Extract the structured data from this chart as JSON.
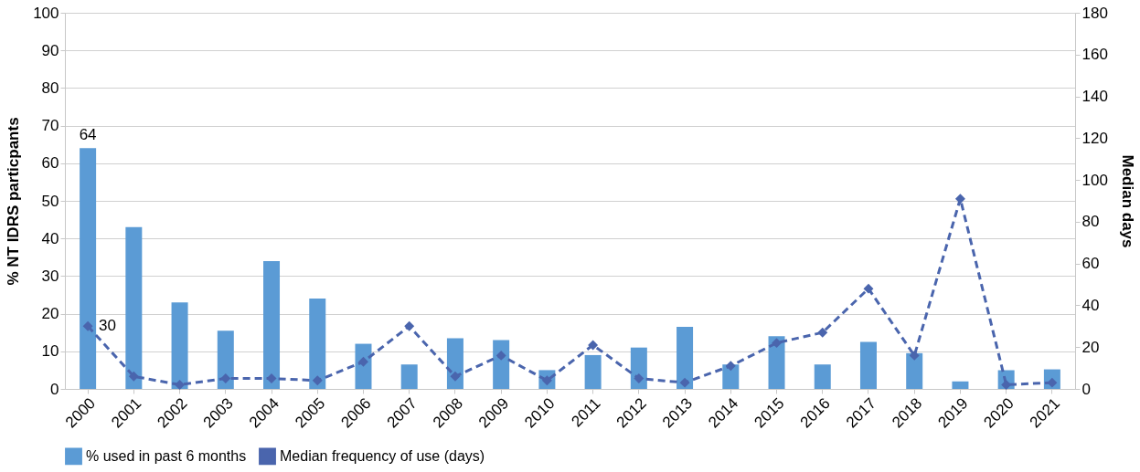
{
  "chart_data": {
    "type": "bar",
    "categories": [
      "2000",
      "2001",
      "2002",
      "2003",
      "2004",
      "2005",
      "2006",
      "2007",
      "2008",
      "2009",
      "2010",
      "2011",
      "2012",
      "2013",
      "2014",
      "2015",
      "2016",
      "2017",
      "2018",
      "2019",
      "2020",
      "2021"
    ],
    "ylabel": "% NT IDRS particpants",
    "y2label": "Median days",
    "ylim": [
      0,
      100
    ],
    "yticks": [
      0,
      10,
      20,
      30,
      40,
      50,
      60,
      70,
      80,
      90,
      100
    ],
    "y2lim": [
      0,
      180
    ],
    "y2ticks": [
      0,
      20,
      40,
      60,
      80,
      100,
      120,
      140,
      160,
      180
    ],
    "grid": "y",
    "legend": "bottom",
    "series": [
      {
        "name": "% used in past 6 months",
        "color": "#5b9bd5",
        "values": [
          64,
          43,
          23,
          15.5,
          34,
          24,
          12,
          6.5,
          13.5,
          13,
          5,
          9,
          11,
          16.5,
          6.5,
          14,
          6.5,
          12.5,
          9.5,
          2,
          5,
          5.2
        ],
        "value_labels": [
          "64",
          null,
          null,
          null,
          null,
          null,
          null,
          null,
          null,
          null,
          null,
          null,
          null,
          null,
          null,
          null,
          null,
          null,
          null,
          null,
          null,
          null
        ]
      },
      {
        "name": "Median frequency of use (days)",
        "type": "line",
        "axis": "y2",
        "color": "#4a65ad",
        "marker": "diamond",
        "line_style": "dashed",
        "values": [
          30,
          6,
          2,
          5,
          5,
          4,
          13,
          30,
          6,
          16,
          4,
          21,
          5,
          3,
          11,
          22,
          27,
          48,
          16,
          91,
          2,
          3
        ],
        "value_labels": [
          "30",
          null,
          null,
          null,
          null,
          null,
          null,
          null,
          null,
          null,
          null,
          null,
          null,
          null,
          null,
          null,
          null,
          null,
          null,
          null,
          null,
          null
        ]
      }
    ]
  }
}
